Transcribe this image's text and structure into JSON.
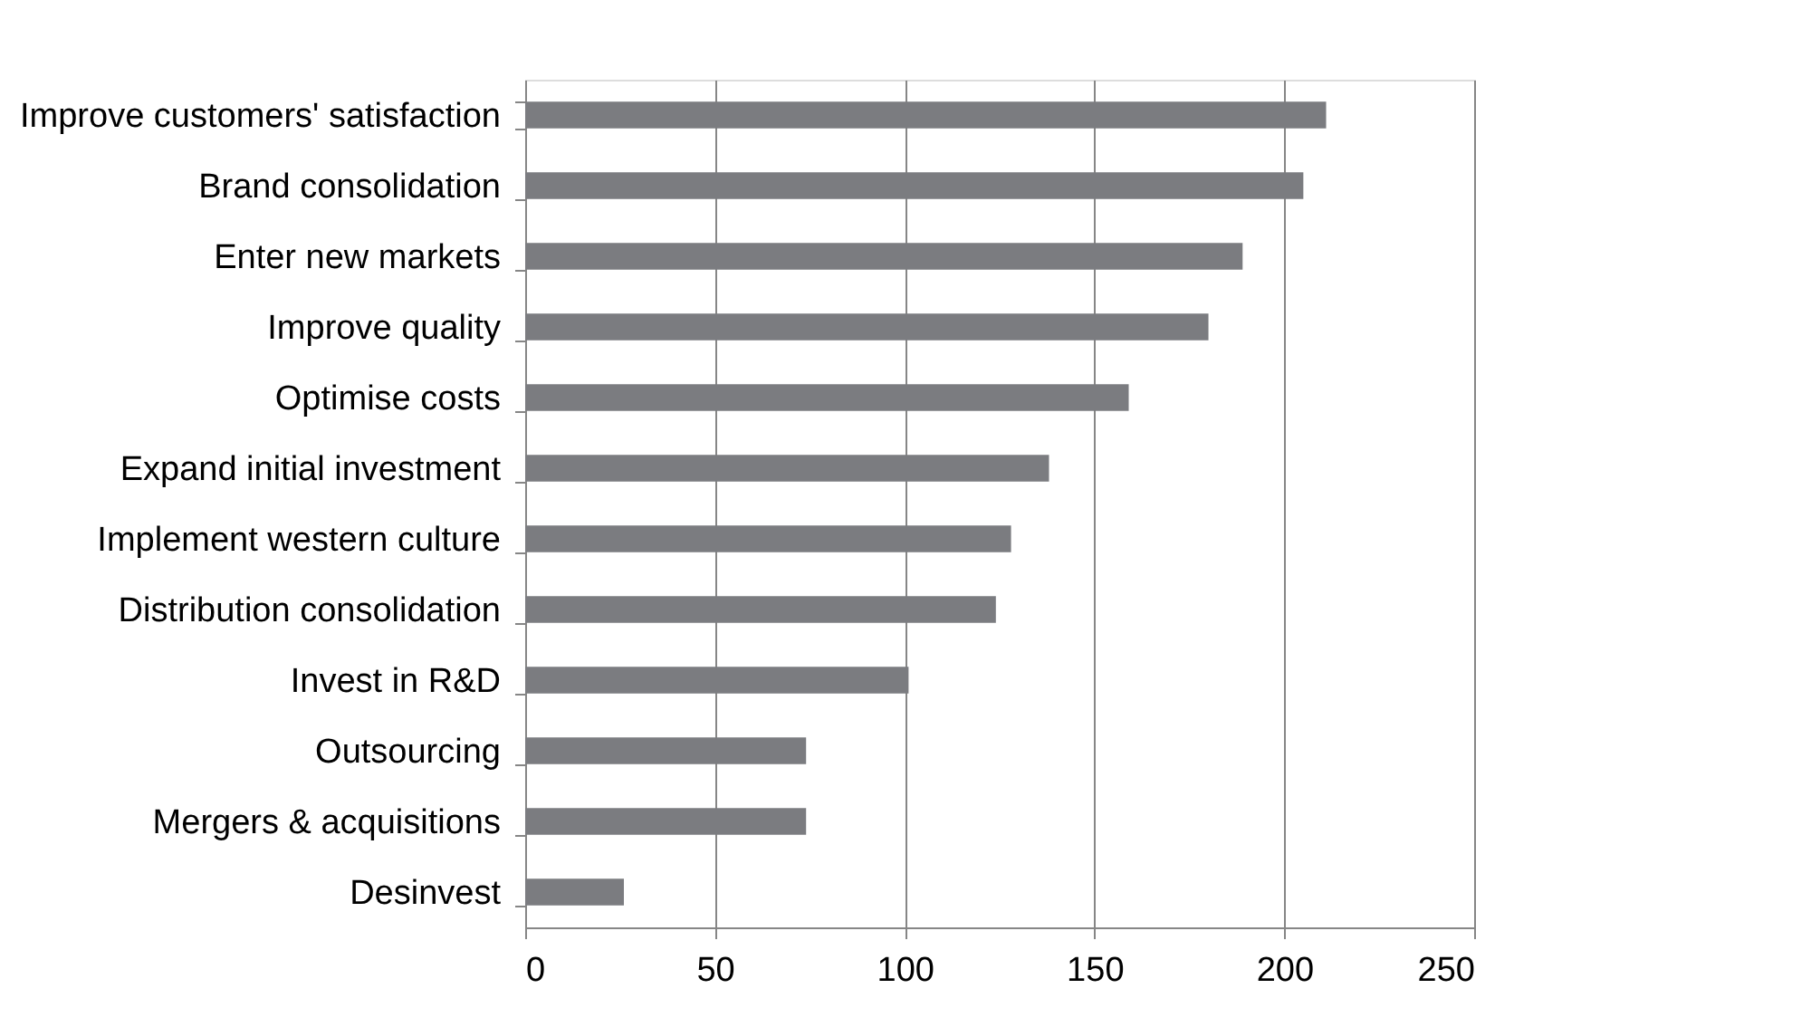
{
  "chart_data": {
    "type": "bar",
    "orientation": "horizontal",
    "categories": [
      "Improve customers' satisfaction",
      "Brand consolidation",
      "Enter new markets",
      "Improve quality",
      "Optimise costs",
      "Expand initial investment",
      "Implement western culture",
      "Distribution consolidation",
      "Invest in R&D",
      "Outsourcing",
      "Mergers & acquisitions",
      "Desinvest"
    ],
    "values": [
      211,
      205,
      189,
      180,
      159,
      138,
      128,
      124,
      101,
      74,
      74,
      26
    ],
    "color": "#7b7c80",
    "xlim": [
      0,
      250
    ],
    "xticks": [
      0,
      50,
      100,
      150,
      200,
      250
    ],
    "grid": "x"
  }
}
